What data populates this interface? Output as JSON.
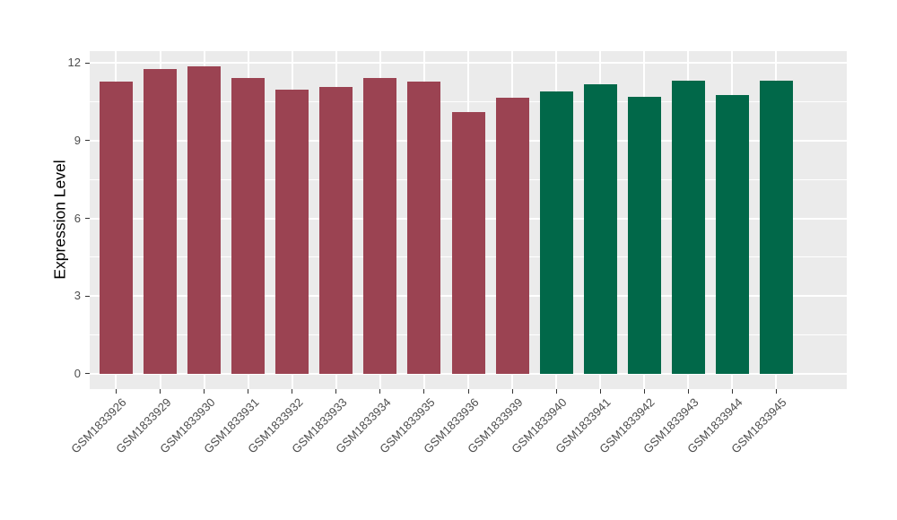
{
  "chart_data": {
    "type": "bar",
    "title": "",
    "xlabel": "",
    "ylabel": "Expression Level",
    "categories": [
      "GSM1833926",
      "GSM1833929",
      "GSM1833930",
      "GSM1833931",
      "GSM1833932",
      "GSM1833933",
      "GSM1833934",
      "GSM1833935",
      "GSM1833936",
      "GSM1833939",
      "GSM1833940",
      "GSM1833941",
      "GSM1833942",
      "GSM1833943",
      "GSM1833944",
      "GSM1833945"
    ],
    "values": [
      11.28,
      11.77,
      11.88,
      11.42,
      10.97,
      11.09,
      11.42,
      11.28,
      10.1,
      10.65,
      10.9,
      11.17,
      10.7,
      11.31,
      10.78,
      11.31
    ],
    "bar_colors": [
      "#9B4352",
      "#9B4352",
      "#9B4352",
      "#9B4352",
      "#9B4352",
      "#9B4352",
      "#9B4352",
      "#9B4352",
      "#9B4352",
      "#9B4352",
      "#016849",
      "#016849",
      "#016849",
      "#016849",
      "#016849",
      "#016849"
    ],
    "group_split_index": 10,
    "group_colors": {
      "left_group": "#9B4352",
      "right_group": "#016849"
    },
    "yticks": [
      0,
      3,
      6,
      9,
      12
    ],
    "minor_yticks": [
      1.5,
      4.5,
      7.5,
      10.5
    ],
    "ylim": [
      -0.59,
      12.46
    ],
    "grid": true,
    "legend": "none",
    "panel_background": "#EBEBEB",
    "gridline_color": "#FFFFFF",
    "tick_label_color": "#4D4D4D",
    "axis_title_color": "#000000"
  }
}
